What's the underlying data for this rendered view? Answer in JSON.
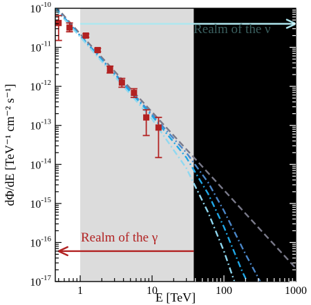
{
  "chart_data": {
    "type": "scatter",
    "xlabel": "E [TeV]",
    "ylabel": "dΦ/dE [TeV⁻¹ cm⁻² s⁻¹]",
    "x_scale": "log",
    "y_scale": "log",
    "xlim": [
      0.45,
      1000
    ],
    "ylim": [
      1e-17,
      1e-10
    ],
    "x_ticks": [
      {
        "value": 1,
        "label": "1"
      },
      {
        "value": 10,
        "label": "10"
      },
      {
        "value": 100,
        "label": "100"
      },
      {
        "value": 1000,
        "label": "1000"
      }
    ],
    "y_ticks": [
      {
        "value": 1e-10,
        "mantissa": "10",
        "exponent": "-10"
      },
      {
        "value": 1e-11,
        "mantissa": "10",
        "exponent": "-11"
      },
      {
        "value": 1e-12,
        "mantissa": "10",
        "exponent": "-12"
      },
      {
        "value": 1e-13,
        "mantissa": "10",
        "exponent": "-13"
      },
      {
        "value": 1e-14,
        "mantissa": "10",
        "exponent": "-14"
      },
      {
        "value": 1e-15,
        "mantissa": "10",
        "exponent": "-15"
      },
      {
        "value": 1e-16,
        "mantissa": "10",
        "exponent": "-16"
      },
      {
        "value": 1e-17,
        "mantissa": "10",
        "exponent": "-17"
      }
    ],
    "regions": [
      {
        "name": "gray-band",
        "x_from": 1,
        "x_to": 38,
        "color": "#dcdcdc"
      },
      {
        "name": "black-band",
        "x_from": 38,
        "x_to": 1000,
        "color": "#000000"
      }
    ],
    "annotations": [
      {
        "text": "Realm of the ν",
        "color": "#3a5f5f",
        "arrow_color": "#aee6ee",
        "arrow_y": 4e-11,
        "x_from": 1,
        "x_to": 1000,
        "text_x": 130,
        "text_y": 2.3e-11,
        "arrow_dir": "right"
      },
      {
        "text": "Realm of the γ",
        "color": "#b22222",
        "arrow_color": "#b22222",
        "arrow_y": 6e-17,
        "x_from": 38,
        "x_to": 0.5,
        "text_x": 3.5,
        "text_y": 1.05e-16,
        "arrow_dir": "left"
      }
    ],
    "data_points": [
      {
        "x": 0.5,
        "y": 4.2e-11,
        "ylo": 1.5e-11,
        "yhi": 6.5e-11
      },
      {
        "x": 0.71,
        "y": 3.2e-11,
        "ylo": 2.5e-11,
        "yhi": 4.2e-11
      },
      {
        "x": 1.2,
        "y": 2e-11,
        "ylo": 1.8e-11,
        "yhi": 2.2e-11
      },
      {
        "x": 1.75,
        "y": 8.5e-12,
        "ylo": 7.7e-12,
        "yhi": 9.4e-12
      },
      {
        "x": 2.6,
        "y": 2.7e-12,
        "ylo": 2.2e-12,
        "yhi": 3.3e-12
      },
      {
        "x": 3.8,
        "y": 1.25e-12,
        "ylo": 9.5e-13,
        "yhi": 1.6e-12
      },
      {
        "x": 5.6,
        "y": 6.8e-13,
        "ylo": 5.2e-13,
        "yhi": 8.7e-13
      },
      {
        "x": 8.3,
        "y": 1.6e-13,
        "ylo": 5.5e-14,
        "yhi": 2.5e-13
      },
      {
        "x": 12.3,
        "y": 8.8e-14,
        "ylo": 1.5e-14,
        "yhi": 1.6e-13
      }
    ],
    "marker_color": "#b22222",
    "series": [
      {
        "style": "dashed",
        "color": "#7a7a8a",
        "points": [
          [
            0.45,
            1.15e-10
          ],
          [
            1,
            2.2e-11
          ],
          [
            10,
            2.2e-13
          ],
          [
            100,
            2.2e-15
          ],
          [
            1000,
            2.2e-17
          ]
        ]
      },
      {
        "style": "dash-dot",
        "color": "#4a86c8",
        "points": [
          [
            0.45,
            1.05e-10
          ],
          [
            1,
            2e-11
          ],
          [
            10,
            1.9e-13
          ],
          [
            30,
            2e-14
          ],
          [
            60,
            3.5e-15
          ],
          [
            100,
            6.5e-16
          ],
          [
            200,
            5e-17
          ],
          [
            320,
            1e-17
          ]
        ]
      },
      {
        "style": "dash-dot",
        "color": "#1fa7e6",
        "points": [
          [
            0.45,
            1e-10
          ],
          [
            1,
            1.95e-11
          ],
          [
            10,
            1.75e-13
          ],
          [
            30,
            1.5e-14
          ],
          [
            60,
            1.8e-15
          ],
          [
            100,
            2.5e-16
          ],
          [
            180,
            1.8e-17
          ],
          [
            210,
            1e-17
          ]
        ]
      },
      {
        "style": "dash-dot",
        "color": "#8fd8f0",
        "points": [
          [
            0.45,
            9.5e-11
          ],
          [
            1,
            1.85e-11
          ],
          [
            10,
            1.45e-13
          ],
          [
            30,
            8e-15
          ],
          [
            60,
            6e-16
          ],
          [
            100,
            6e-17
          ],
          [
            140,
            1e-17
          ]
        ]
      }
    ]
  }
}
